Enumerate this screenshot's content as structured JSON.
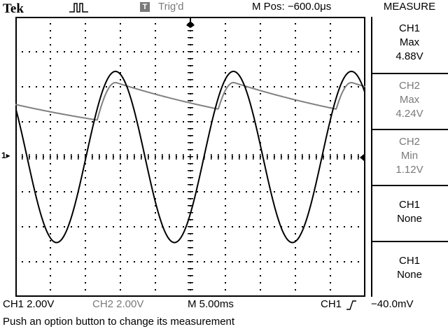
{
  "header": {
    "brand": "Tek",
    "trigger_icon": "trigger-pulse-icon",
    "trigger_badge": "T",
    "trigger_status": "Trig'd",
    "m_pos": "M Pos: −600.0μs"
  },
  "menu": {
    "title": "MEASURE",
    "items": [
      {
        "source": "CH1",
        "type": "Max",
        "value": "4.88V"
      },
      {
        "source": "CH2",
        "type": "Max",
        "value": "4.24V"
      },
      {
        "source": "CH2",
        "type": "Min",
        "value": "1.12V"
      },
      {
        "source": "CH1",
        "type": "None"
      },
      {
        "source": "CH1",
        "type": "None"
      }
    ]
  },
  "footer": {
    "ch1_scale": "CH1  2.00V",
    "ch2_scale": "CH2  2.00V",
    "timebase": "M 5.00ms",
    "trigger_source": "CH1",
    "trigger_level": "−40.0mV",
    "status": "Push an option button to change its measurement"
  },
  "markers": {
    "ch1_ground": "1▸"
  },
  "colors": {
    "ch1": "#000000",
    "ch2": "#808080",
    "gray_text": "#7a7a7a"
  },
  "traces": {
    "ch1": {
      "volts_per_div": 2.0,
      "max_v": 4.88,
      "min_v": -4.9,
      "period_div": 3.37
    },
    "ch2": {
      "volts_per_div": 2.0,
      "max_v": 4.24,
      "min_v": 1.12
    }
  }
}
